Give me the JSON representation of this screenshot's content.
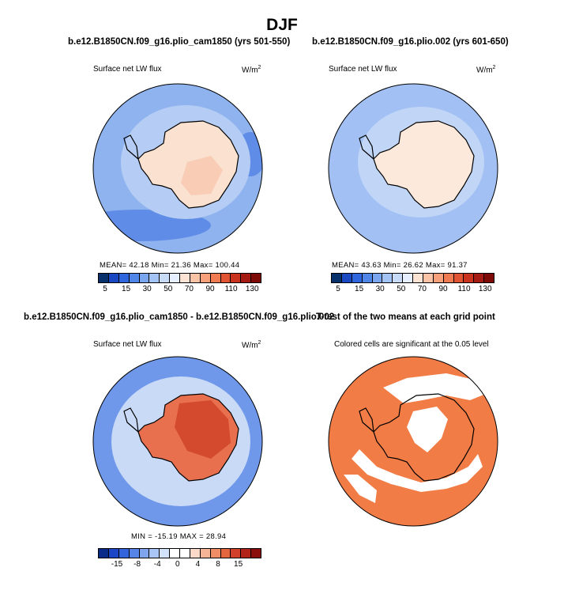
{
  "figure": {
    "title": "DJF"
  },
  "panels": {
    "p1": {
      "title": "b.e12.B1850CN.f09_g16.plio_cam1850 (yrs 501-550)",
      "left_label": "Surface net LW flux",
      "units_main": "W/m",
      "units_sup": "2",
      "stats": "MEAN=   42.18   Min=   21.36   Max=  100.44",
      "mean": 42.18,
      "min": 21.36,
      "max": 100.44
    },
    "p2": {
      "title": "b.e12.B1850CN.f09_g16.plio.002 (yrs 601-650)",
      "left_label": "Surface net LW flux",
      "units_main": "W/m",
      "units_sup": "2",
      "stats": "MEAN=   43.63   Min=   26.62   Max=   91.37",
      "mean": 43.63,
      "min": 26.62,
      "max": 91.37
    },
    "p3": {
      "title": "b.e12.B1850CN.f09_g16.plio_cam1850 - b.e12.B1850CN.f09_g16.plio.002",
      "left_label": "Surface net LW flux",
      "units_main": "W/m",
      "units_sup": "2",
      "stats": "MIN = -15.19  MAX =  28.94",
      "min": -15.19,
      "max": 28.94
    },
    "p4": {
      "title": "T-test of the two means at each grid point",
      "subtitle": "Colored cells are significant at the 0.05 level"
    }
  },
  "colorbars": {
    "abs_colors": [
      "#08306b",
      "#1a47c2",
      "#2f66dd",
      "#4f86e8",
      "#7aa6ef",
      "#a3c3f4",
      "#c7dbf8",
      "#e6efff",
      "#fde3d3",
      "#fcc3a7",
      "#f8a07b",
      "#f07a52",
      "#e05434",
      "#c8321e",
      "#a51a12",
      "#7e0a08"
    ],
    "abs_ticks": [
      "5",
      "15",
      "30",
      "50",
      "70",
      "90",
      "110",
      "130"
    ],
    "diff_colors": [
      "#0a2a8a",
      "#1c46c6",
      "#3464dc",
      "#5684e6",
      "#7fa5ef",
      "#a9c6f6",
      "#d2e2fb",
      "#ffffff",
      "#ffffff",
      "#fbd9c8",
      "#f7b496",
      "#f08d67",
      "#e4663f",
      "#d0402a",
      "#b2231a",
      "#8a0e0c"
    ],
    "diff_ticks": [
      "-15",
      "-8",
      "-4",
      "0",
      "4",
      "8",
      "15"
    ]
  },
  "chart_data": [
    {
      "type": "heatmap",
      "title": "Surface net LW flux",
      "units": "W/m2",
      "mean": 42.18,
      "min": 21.36,
      "max": 100.44,
      "levels": [
        5,
        15,
        30,
        50,
        70,
        90,
        110,
        130
      ]
    },
    {
      "type": "heatmap",
      "title": "Surface net LW flux",
      "units": "W/m2",
      "mean": 43.63,
      "min": 26.62,
      "max": 91.37,
      "levels": [
        5,
        15,
        30,
        50,
        70,
        90,
        110,
        130
      ]
    },
    {
      "type": "heatmap",
      "title": "Surface net LW flux",
      "units": "W/m2",
      "min": -15.19,
      "max": 28.94,
      "levels": [
        -15,
        -8,
        -4,
        0,
        4,
        8,
        15
      ]
    },
    {
      "type": "heatmap",
      "title": "T-test of the two means at each grid point",
      "significance_level": 0.05
    }
  ],
  "palette": {
    "ocean_p1": "#8fb3ef",
    "ocean_p1_inner": "#b5cdf5",
    "ocean_p1_deep": "#5f8ce6",
    "ocean_p2": "#a2c0f3",
    "ocean_p2_inner": "#c1d6f7",
    "land_p1": "#fbe1cf",
    "land_p2": "#fde9dc",
    "land_warm": "#f6b89b",
    "diff_ocean": "#c9daf7",
    "diff_ocean_edge": "#6f97ea",
    "diff_land": "#e8704f",
    "diff_land_hot": "#cc3b22",
    "ttest": "#f27c46"
  }
}
